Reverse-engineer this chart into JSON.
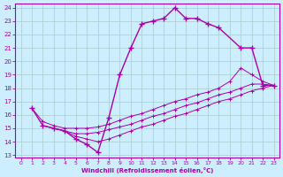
{
  "xlabel": "Windchill (Refroidissement éolien,°C)",
  "background_color": "#cceeff",
  "grid_color": "#aacccc",
  "line_color": "#aa00aa",
  "xlim": [
    -0.5,
    23.5
  ],
  "ylim": [
    12.8,
    24.3
  ],
  "xticks": [
    0,
    1,
    2,
    3,
    4,
    5,
    6,
    7,
    8,
    9,
    10,
    11,
    12,
    13,
    14,
    15,
    16,
    17,
    18,
    19,
    20,
    21,
    22,
    23
  ],
  "yticks": [
    13,
    14,
    15,
    16,
    17,
    18,
    19,
    20,
    21,
    22,
    23,
    24
  ],
  "curve_main_x": [
    1,
    2,
    3,
    4,
    5,
    6,
    7,
    8,
    9,
    10,
    11,
    12,
    13,
    14,
    15,
    16,
    17,
    18,
    20,
    21,
    22,
    23
  ],
  "curve_main_y": [
    16.5,
    15.2,
    15.0,
    14.8,
    14.2,
    13.8,
    13.2,
    15.8,
    19.0,
    21.0,
    22.8,
    23.0,
    23.2,
    24.0,
    23.2,
    23.2,
    22.8,
    22.5,
    21.0,
    21.0,
    18.2,
    18.2
  ],
  "line1_x": [
    1,
    2,
    3,
    4,
    5,
    6,
    7,
    8,
    9,
    10,
    11,
    12,
    13,
    14,
    15,
    16,
    17,
    18,
    19,
    20,
    21,
    22,
    23
  ],
  "line1_y": [
    16.5,
    15.5,
    15.2,
    15.0,
    15.0,
    15.0,
    15.1,
    15.3,
    15.6,
    15.9,
    16.1,
    16.4,
    16.7,
    17.0,
    17.2,
    17.5,
    17.7,
    18.0,
    18.5,
    19.5,
    19.0,
    18.5,
    18.2
  ],
  "line2_x": [
    2,
    3,
    4,
    5,
    6,
    7,
    8,
    9,
    10,
    11,
    12,
    13,
    14,
    15,
    16,
    17,
    18,
    19,
    20,
    21,
    22,
    23
  ],
  "line2_y": [
    15.2,
    15.0,
    14.8,
    14.6,
    14.6,
    14.7,
    14.9,
    15.1,
    15.3,
    15.6,
    15.9,
    16.1,
    16.4,
    16.7,
    16.9,
    17.2,
    17.5,
    17.7,
    18.0,
    18.3,
    18.3,
    18.2
  ],
  "line3_x": [
    3,
    4,
    5,
    6,
    7,
    8,
    9,
    10,
    11,
    12,
    13,
    14,
    15,
    16,
    17,
    18,
    19,
    20,
    21,
    22,
    23
  ],
  "line3_y": [
    15.0,
    14.8,
    14.4,
    14.2,
    14.0,
    14.2,
    14.5,
    14.8,
    15.1,
    15.3,
    15.6,
    15.9,
    16.1,
    16.4,
    16.7,
    17.0,
    17.2,
    17.5,
    17.8,
    18.0,
    18.2
  ]
}
